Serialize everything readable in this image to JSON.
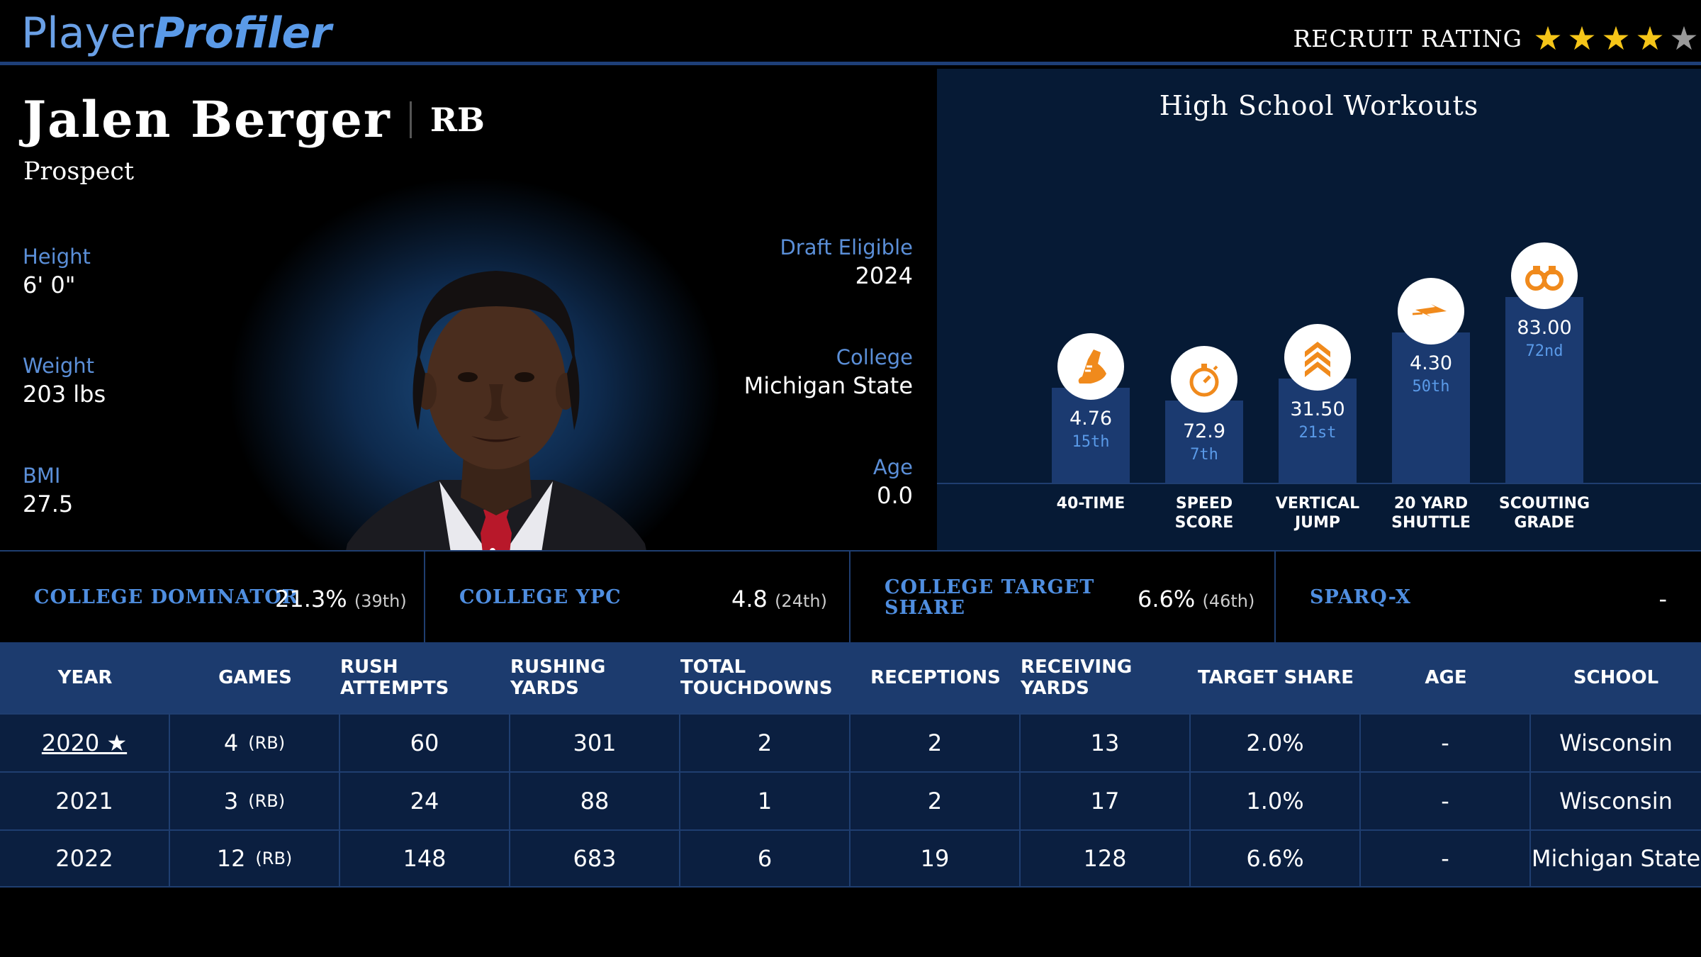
{
  "header": {
    "logo_part1": "Player",
    "logo_part2": "Profiler",
    "recruit_label": "RECRUIT RATING",
    "recruit_stars_filled": 4,
    "recruit_stars_total": 5,
    "star_on_color": "#f5c518",
    "star_off_color": "#9a9a9a"
  },
  "profile": {
    "name": "Jalen Berger",
    "position": "RB",
    "status": "Prospect",
    "height_label": "Height",
    "height": "6' 0\"",
    "weight_label": "Weight",
    "weight": "203 lbs",
    "bmi_label": "BMI",
    "bmi": "27.5",
    "draft_label": "Draft Eligible",
    "draft": "2024",
    "college_label": "College",
    "college": "Michigan State",
    "age_label": "Age",
    "age": "0.0"
  },
  "workouts": {
    "title": "High School Workouts",
    "items": [
      {
        "label1": "40-TIME",
        "label2": "",
        "value": "4.76",
        "rank": "15th",
        "percentile": 15,
        "icon": "shoe-icon"
      },
      {
        "label1": "SPEED",
        "label2": "SCORE",
        "value": "72.9",
        "rank": "7th",
        "percentile": 7,
        "icon": "stopwatch-icon"
      },
      {
        "label1": "VERTICAL",
        "label2": "JUMP",
        "value": "31.50",
        "rank": "21st",
        "percentile": 21,
        "icon": "chevrons-up-icon"
      },
      {
        "label1": "20 YARD",
        "label2": "SHUTTLE",
        "value": "4.30",
        "rank": "50th",
        "percentile": 50,
        "icon": "lightning-icon"
      },
      {
        "label1": "SCOUTING",
        "label2": "GRADE",
        "value": "83.00",
        "rank": "72nd",
        "percentile": 72,
        "icon": "binoculars-icon"
      }
    ]
  },
  "metrics": [
    {
      "label1": "COLLEGE DOMINATOR",
      "label2": "",
      "value": "21.3%",
      "rank": "(39th)"
    },
    {
      "label1": "COLLEGE YPC",
      "label2": "",
      "value": "4.8",
      "rank": "(24th)"
    },
    {
      "label1": "COLLEGE TARGET",
      "label2": "SHARE",
      "value": "6.6%",
      "rank": "(46th)"
    },
    {
      "label1": "SPARQ-x",
      "label2": "",
      "value": "-",
      "rank": ""
    }
  ],
  "table": {
    "headers": [
      "YEAR",
      "GAMES",
      "RUSH ATTEMPTS",
      "RUSHING YARDS",
      "TOTAL TOUCHDOWNS",
      "RECEPTIONS",
      "RECEIVING YARDS",
      "TARGET SHARE",
      "AGE",
      "SCHOOL"
    ],
    "rows": [
      {
        "year": "2020 ★",
        "games": "4",
        "games_pos": "(RB)",
        "rush_att": "60",
        "rush_yds": "301",
        "tds": "2",
        "rec": "2",
        "rec_yds": "13",
        "tgt_share": "2.0%",
        "age": "-",
        "school": "Wisconsin"
      },
      {
        "year": "2021",
        "games": "3",
        "games_pos": "(RB)",
        "rush_att": "24",
        "rush_yds": "88",
        "tds": "1",
        "rec": "2",
        "rec_yds": "17",
        "tgt_share": "1.0%",
        "age": "-",
        "school": "Wisconsin"
      },
      {
        "year": "2022",
        "games": "12",
        "games_pos": "(RB)",
        "rush_att": "148",
        "rush_yds": "683",
        "tds": "6",
        "rec": "19",
        "rec_yds": "128",
        "tgt_share": "6.6%",
        "age": "-",
        "school": "Michigan State"
      }
    ]
  }
}
